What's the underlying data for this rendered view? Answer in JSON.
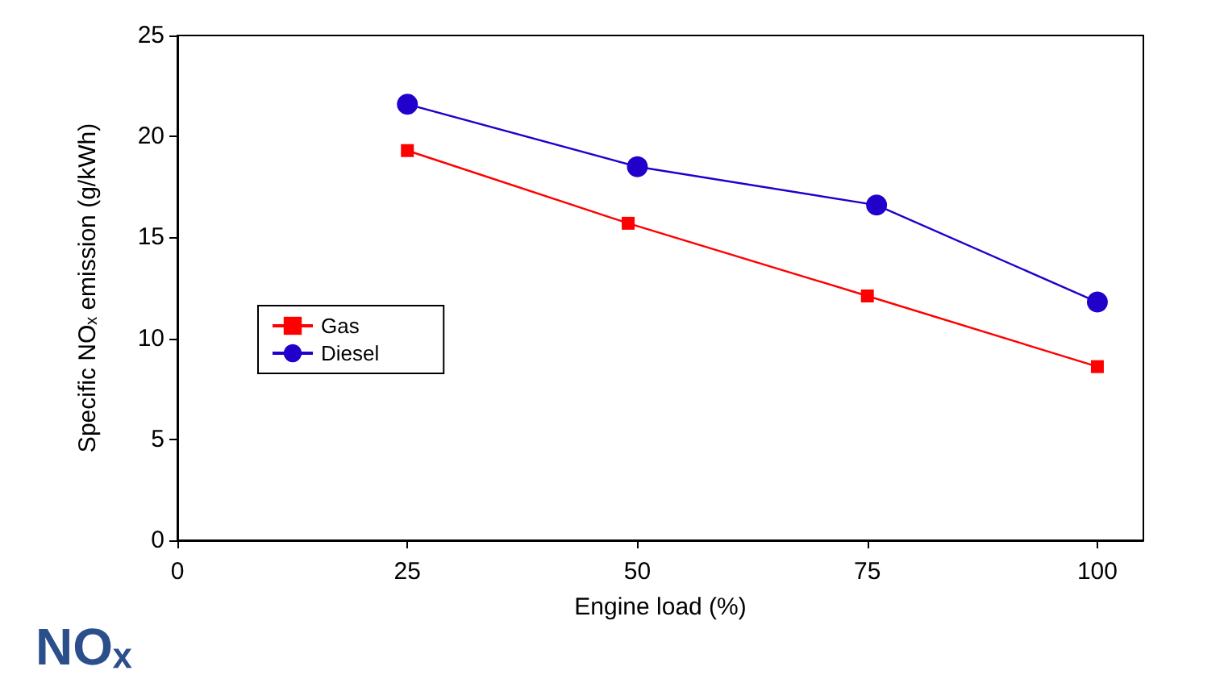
{
  "chart_data": {
    "type": "line",
    "xlabel": "Engine load (%)",
    "ylabel": "Specific NOₓ emission (g/kWh)",
    "annotations": [
      "NOₓ"
    ],
    "series": [
      {
        "name": "Gas",
        "color": "#ff0000",
        "marker": "square",
        "x": [
          25,
          49,
          75,
          100
        ],
        "values": [
          19.3,
          15.7,
          12.1,
          8.6
        ]
      },
      {
        "name": "Diesel",
        "color": "#2200cc",
        "marker": "circle",
        "x": [
          25,
          50,
          76,
          100
        ],
        "values": [
          21.6,
          18.5,
          16.6,
          11.8
        ]
      }
    ],
    "xlim": [
      0,
      105
    ],
    "xticks": [
      0,
      25,
      50,
      75,
      100
    ],
    "ylim": [
      0,
      25
    ],
    "yticks": [
      0,
      5,
      10,
      15,
      20,
      25
    ],
    "grid": false,
    "legend": "left"
  }
}
